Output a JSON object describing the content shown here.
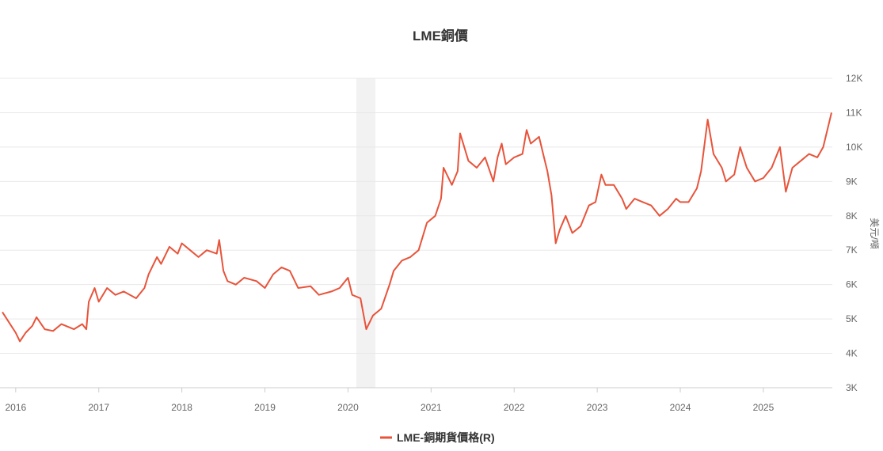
{
  "chart_data": {
    "type": "line",
    "title": "LME銅價",
    "xlabel": "",
    "ylabel": "美元/噸",
    "y_axis_side": "right",
    "ylim": [
      3000,
      12000
    ],
    "xlim": [
      2015.83,
      2025.83
    ],
    "y_ticks": [
      3000,
      4000,
      5000,
      6000,
      7000,
      8000,
      9000,
      10000,
      11000,
      12000
    ],
    "y_tick_labels": [
      "3K",
      "4K",
      "5K",
      "6K",
      "7K",
      "8K",
      "9K",
      "10K",
      "11K",
      "12K"
    ],
    "x_ticks": [
      2016,
      2017,
      2018,
      2019,
      2020,
      2021,
      2022,
      2023,
      2024,
      2025
    ],
    "x_tick_labels": [
      "2016",
      "2017",
      "2018",
      "2019",
      "2020",
      "2021",
      "2022",
      "2023",
      "2024",
      "2025"
    ],
    "grid": true,
    "legend_position": "bottom-center",
    "shaded_region": {
      "from": 2020.1,
      "to": 2020.33,
      "color": "#f2f2f2"
    },
    "series": [
      {
        "name": "LME-銅期貨價格(R)",
        "color": "#e8533a",
        "x": [
          2015.84,
          2016.0,
          2016.05,
          2016.12,
          2016.2,
          2016.25,
          2016.35,
          2016.45,
          2016.55,
          2016.7,
          2016.8,
          2016.85,
          2016.88,
          2016.95,
          2017.0,
          2017.1,
          2017.2,
          2017.3,
          2017.45,
          2017.55,
          2017.6,
          2017.7,
          2017.75,
          2017.85,
          2017.95,
          2018.0,
          2018.1,
          2018.2,
          2018.3,
          2018.42,
          2018.45,
          2018.5,
          2018.55,
          2018.65,
          2018.75,
          2018.9,
          2019.0,
          2019.1,
          2019.2,
          2019.3,
          2019.4,
          2019.55,
          2019.65,
          2019.8,
          2019.9,
          2020.0,
          2020.05,
          2020.15,
          2020.22,
          2020.3,
          2020.4,
          2020.5,
          2020.55,
          2020.65,
          2020.75,
          2020.85,
          2020.95,
          2021.05,
          2021.12,
          2021.15,
          2021.25,
          2021.32,
          2021.35,
          2021.45,
          2021.55,
          2021.65,
          2021.75,
          2021.8,
          2021.85,
          2021.9,
          2022.0,
          2022.1,
          2022.15,
          2022.2,
          2022.3,
          2022.35,
          2022.4,
          2022.45,
          2022.5,
          2022.55,
          2022.62,
          2022.7,
          2022.8,
          2022.9,
          2022.98,
          2023.05,
          2023.1,
          2023.2,
          2023.3,
          2023.35,
          2023.45,
          2023.55,
          2023.65,
          2023.75,
          2023.85,
          2023.95,
          2024.0,
          2024.1,
          2024.2,
          2024.25,
          2024.33,
          2024.4,
          2024.5,
          2024.55,
          2024.65,
          2024.72,
          2024.8,
          2024.9,
          2025.0,
          2025.1,
          2025.2,
          2025.27,
          2025.35,
          2025.45,
          2025.55,
          2025.65,
          2025.72,
          2025.78,
          2025.82
        ],
        "values": [
          5200,
          4600,
          4350,
          4600,
          4800,
          5050,
          4700,
          4650,
          4850,
          4700,
          4850,
          4700,
          5500,
          5900,
          5500,
          5900,
          5700,
          5800,
          5600,
          5900,
          6300,
          6800,
          6600,
          7100,
          6900,
          7200,
          7000,
          6800,
          7000,
          6900,
          7300,
          6400,
          6100,
          6000,
          6200,
          6100,
          5900,
          6300,
          6500,
          6400,
          5900,
          5950,
          5700,
          5800,
          5900,
          6200,
          5700,
          5600,
          4700,
          5100,
          5300,
          6000,
          6400,
          6700,
          6800,
          7000,
          7800,
          8000,
          8500,
          9400,
          8900,
          9300,
          10400,
          9600,
          9400,
          9700,
          9000,
          9700,
          10100,
          9500,
          9700,
          9800,
          10500,
          10100,
          10300,
          9800,
          9300,
          8600,
          7200,
          7600,
          8000,
          7500,
          7700,
          8300,
          8400,
          9200,
          8900,
          8900,
          8500,
          8200,
          8500,
          8400,
          8300,
          8000,
          8200,
          8500,
          8400,
          8400,
          8800,
          9300,
          10800,
          9800,
          9400,
          9000,
          9200,
          10000,
          9400,
          9000,
          9100,
          9400,
          10000,
          8700,
          9400,
          9600,
          9800,
          9700,
          10000,
          10600,
          11000
        ]
      }
    ]
  }
}
